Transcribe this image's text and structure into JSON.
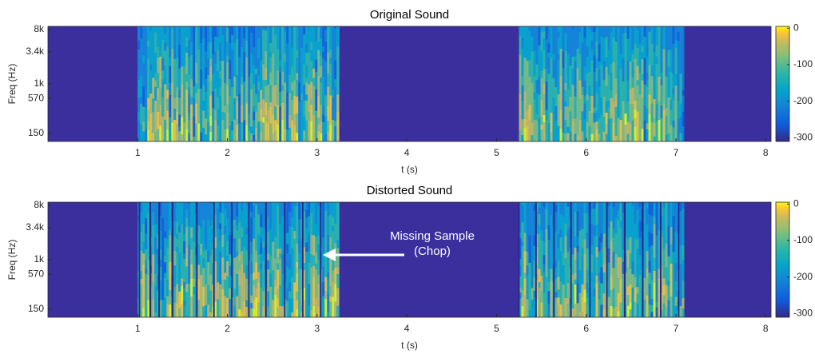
{
  "chart_data": [
    {
      "type": "spectrogram",
      "title": "Original Sound",
      "xlabel": "t (s)",
      "ylabel": "Freq (Hz)",
      "xlim": [
        0,
        8.06
      ],
      "xticks": [
        1,
        2,
        3,
        4,
        5,
        6,
        7,
        8
      ],
      "yscale": "log",
      "ylim": [
        110,
        9000
      ],
      "yticks": [
        {
          "value": 150,
          "label": "150"
        },
        {
          "value": 570,
          "label": "570"
        },
        {
          "value": 1000,
          "label": "1k"
        },
        {
          "value": 3400,
          "label": "3.4k"
        },
        {
          "value": 8000,
          "label": "8k"
        }
      ],
      "background": "#3b2f9e",
      "segments": [
        [
          1.0,
          3.25
        ],
        [
          5.25,
          7.08
        ]
      ],
      "colorbar": {
        "clim": [
          -310,
          5
        ],
        "ticks": [
          -300,
          -200,
          -100,
          0
        ]
      }
    },
    {
      "type": "spectrogram",
      "title": "Distorted Sound",
      "xlabel": "t (s)",
      "ylabel": "Freq (Hz)",
      "xlim": [
        0,
        8.06
      ],
      "xticks": [
        1,
        2,
        3,
        4,
        5,
        6,
        7,
        8
      ],
      "yscale": "log",
      "ylim": [
        110,
        9000
      ],
      "yticks": [
        {
          "value": 150,
          "label": "150"
        },
        {
          "value": 570,
          "label": "570"
        },
        {
          "value": 1000,
          "label": "1k"
        },
        {
          "value": 3400,
          "label": "3.4k"
        },
        {
          "value": 8000,
          "label": "8k"
        }
      ],
      "background": "#3b2f9e",
      "segments": [
        [
          1.0,
          3.25
        ],
        [
          5.25,
          7.08
        ]
      ],
      "chops": [
        1.02,
        1.14,
        1.24,
        1.39,
        1.66,
        1.85,
        2.05,
        2.24,
        2.43,
        2.64,
        2.84,
        3.04,
        5.25,
        5.44,
        5.64,
        5.83,
        6.04,
        6.23,
        6.43,
        6.63,
        6.83,
        7.03
      ],
      "annotation": [
        "Missing Sample",
        "(Chop)"
      ],
      "colorbar": {
        "clim": [
          -310,
          5
        ],
        "ticks": [
          -300,
          -200,
          -100,
          0
        ]
      }
    }
  ]
}
